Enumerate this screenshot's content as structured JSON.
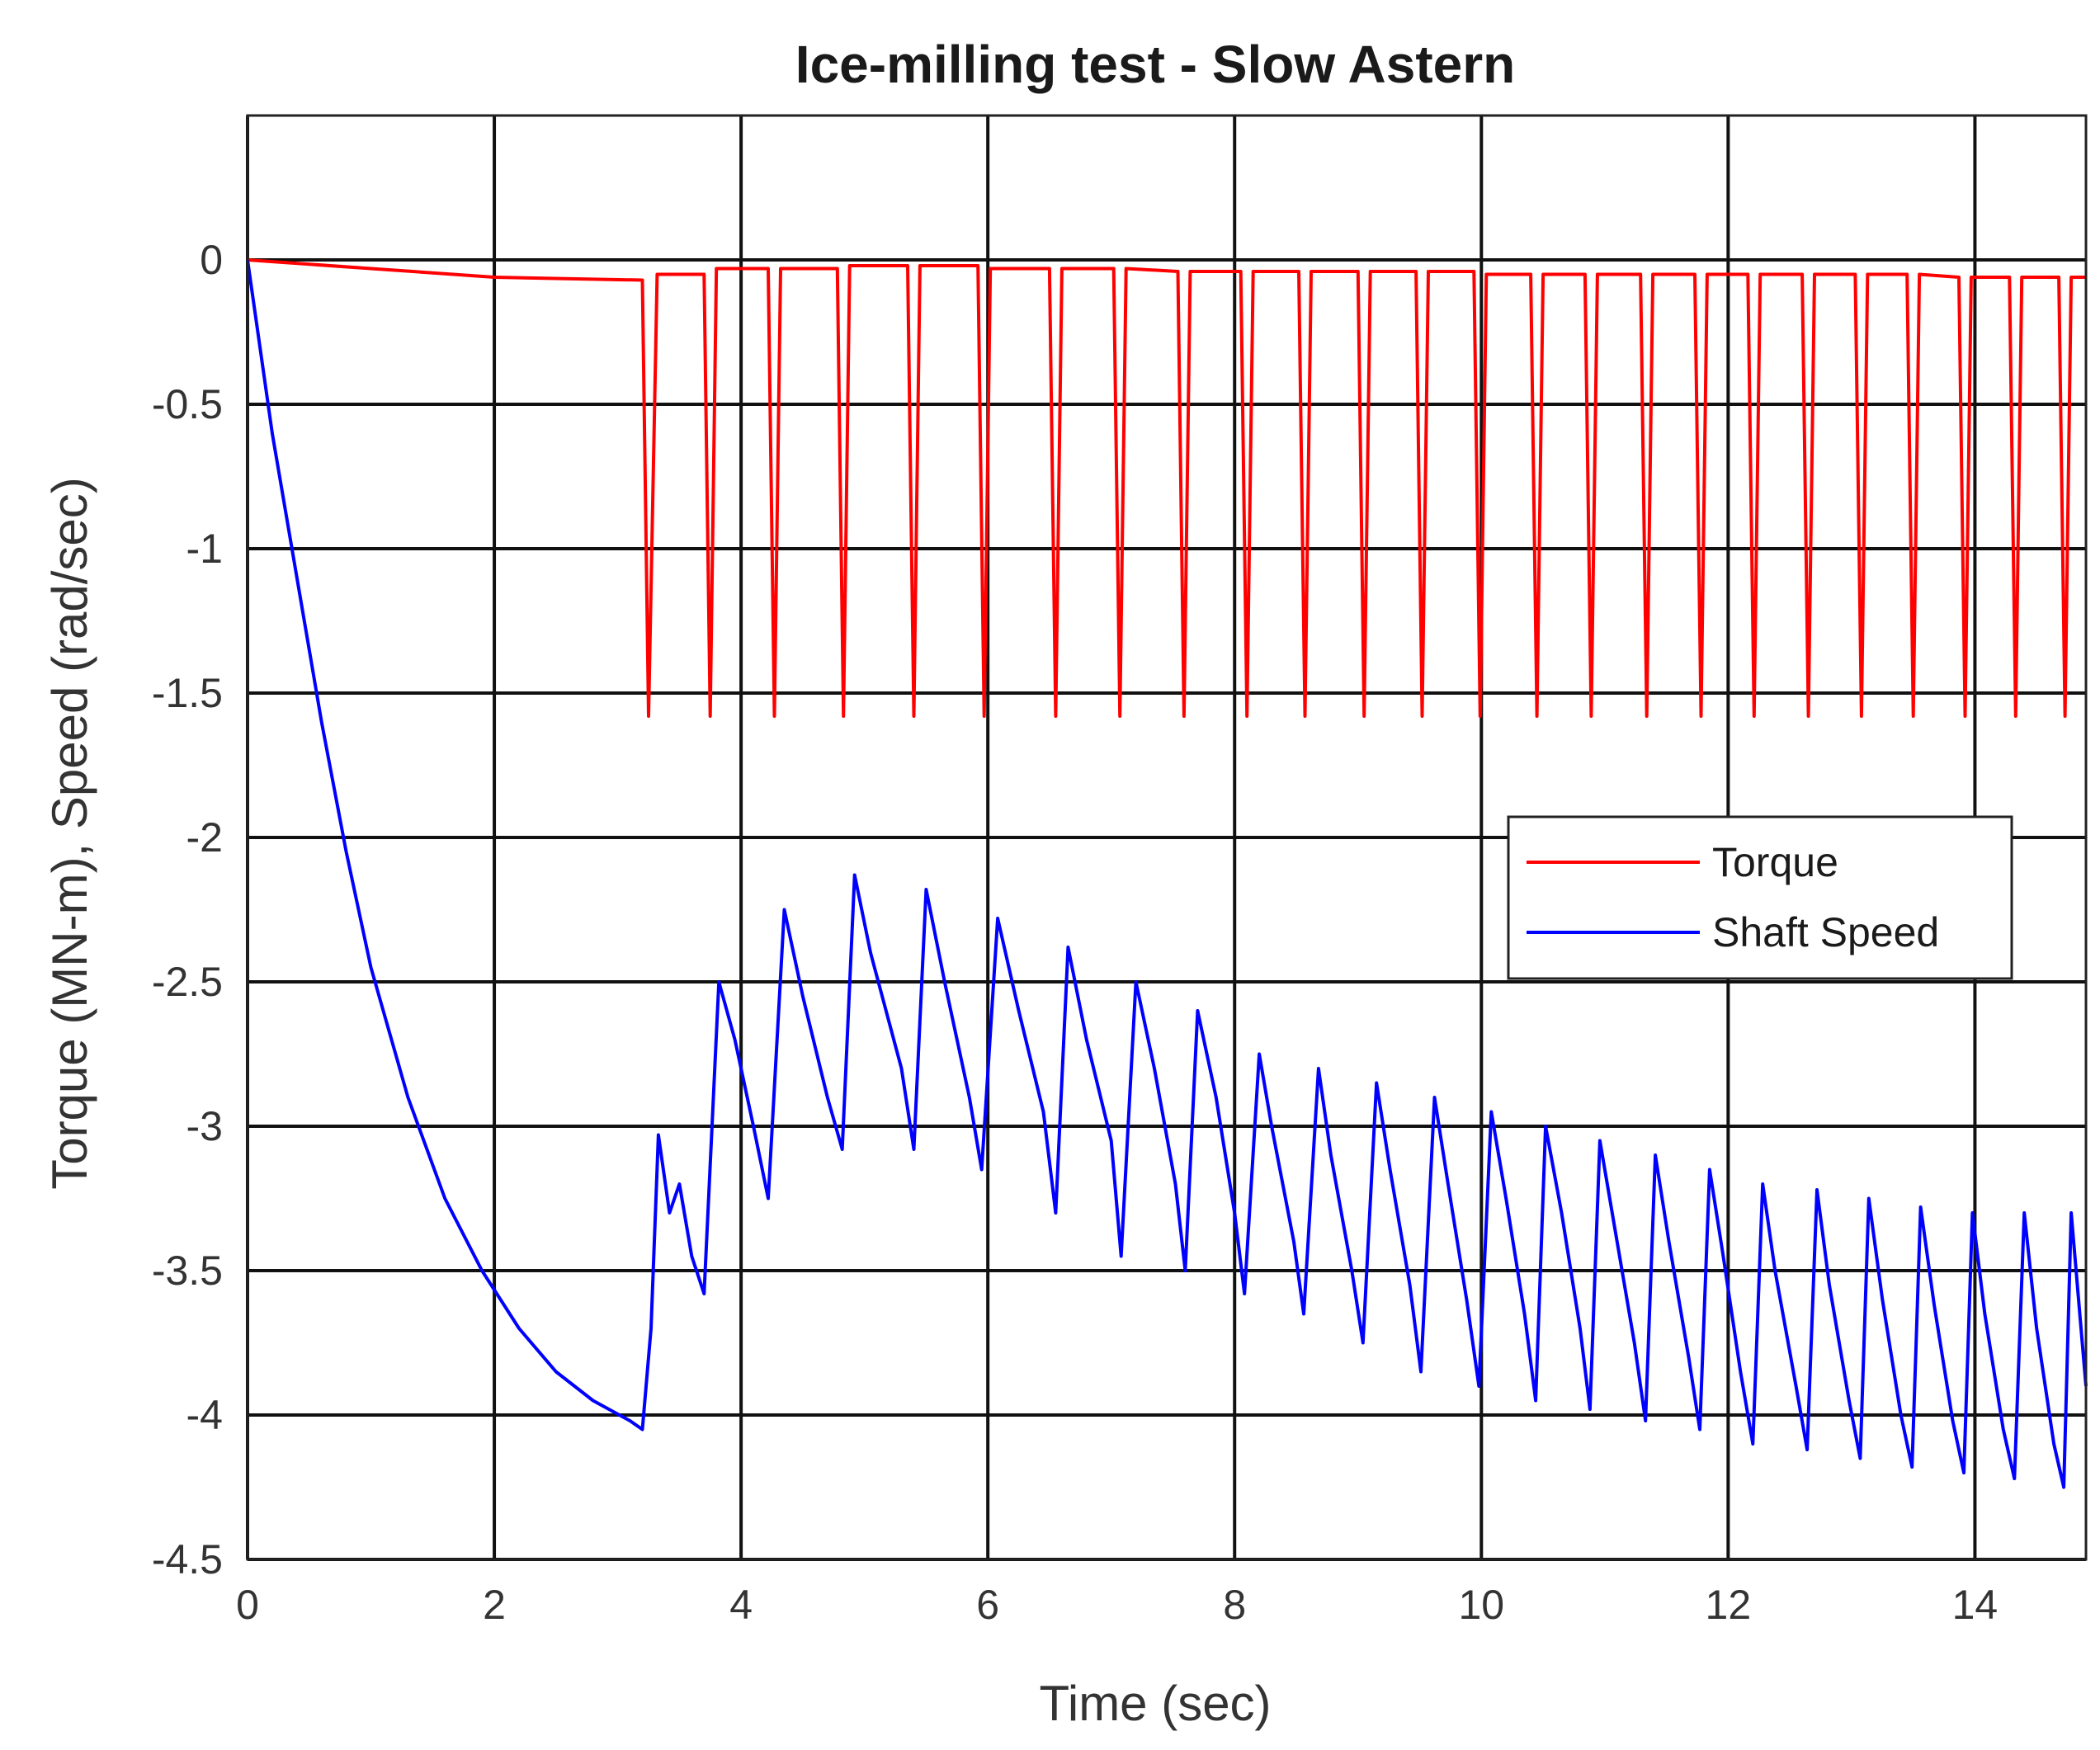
{
  "chart_data": {
    "type": "line",
    "title": "Ice-milling test - Slow Astern",
    "xlabel": "Time (sec)",
    "ylabel": "Torque (MN-m), Speed (rad/sec)",
    "xlim": [
      0,
      14.9
    ],
    "ylim": [
      -4.5,
      0.5
    ],
    "xticks": [
      0,
      2,
      4,
      6,
      8,
      10,
      12,
      14
    ],
    "xtick_labels": [
      "0",
      "2",
      "4",
      "6",
      "8",
      "10",
      "12",
      "14"
    ],
    "yticks": [
      0,
      -0.5,
      -1,
      -1.5,
      -2,
      -2.5,
      -3,
      -3.5,
      -4,
      -4.5
    ],
    "ytick_labels": [
      "0",
      "-0.5",
      "-1",
      "-1.5",
      "-2",
      "-2.5",
      "-3",
      "-3.5",
      "-4",
      "-4.5"
    ],
    "grid": true,
    "legend_position": "middle-right",
    "series": [
      {
        "name": "Torque",
        "color": "#ff0000",
        "points": [
          [
            0,
            0
          ],
          [
            1,
            -0.03
          ],
          [
            2,
            -0.06
          ],
          [
            3.2,
            -0.07
          ],
          [
            3.25,
            -1.58
          ],
          [
            3.32,
            -0.05
          ],
          [
            3.7,
            -0.05
          ],
          [
            3.75,
            -1.58
          ],
          [
            3.8,
            -0.03
          ],
          [
            4.22,
            -0.03
          ],
          [
            4.27,
            -1.58
          ],
          [
            4.32,
            -0.03
          ],
          [
            4.78,
            -0.03
          ],
          [
            4.83,
            -1.58
          ],
          [
            4.88,
            -0.02
          ],
          [
            5.35,
            -0.02
          ],
          [
            5.4,
            -1.58
          ],
          [
            5.45,
            -0.02
          ],
          [
            5.92,
            -0.02
          ],
          [
            5.97,
            -1.58
          ],
          [
            6.02,
            -0.03
          ],
          [
            6.5,
            -0.03
          ],
          [
            6.55,
            -1.58
          ],
          [
            6.6,
            -0.03
          ],
          [
            7.02,
            -0.03
          ],
          [
            7.07,
            -1.58
          ],
          [
            7.12,
            -0.03
          ],
          [
            7.54,
            -0.04
          ],
          [
            7.59,
            -1.58
          ],
          [
            7.64,
            -0.04
          ],
          [
            8.05,
            -0.04
          ],
          [
            8.1,
            -1.58
          ],
          [
            8.15,
            -0.04
          ],
          [
            8.52,
            -0.04
          ],
          [
            8.57,
            -1.58
          ],
          [
            8.62,
            -0.04
          ],
          [
            9,
            -0.04
          ],
          [
            9.05,
            -1.58
          ],
          [
            9.1,
            -0.04
          ],
          [
            9.47,
            -0.04
          ],
          [
            9.52,
            -1.58
          ],
          [
            9.57,
            -0.04
          ],
          [
            9.94,
            -0.04
          ],
          [
            9.99,
            -1.58
          ],
          [
            10.04,
            -0.05
          ],
          [
            10.4,
            -0.05
          ],
          [
            10.45,
            -1.58
          ],
          [
            10.5,
            -0.05
          ],
          [
            10.84,
            -0.05
          ],
          [
            10.89,
            -1.58
          ],
          [
            10.94,
            -0.05
          ],
          [
            11.29,
            -0.05
          ],
          [
            11.34,
            -1.58
          ],
          [
            11.39,
            -0.05
          ],
          [
            11.73,
            -0.05
          ],
          [
            11.78,
            -1.58
          ],
          [
            11.83,
            -0.05
          ],
          [
            12.16,
            -0.05
          ],
          [
            12.21,
            -1.58
          ],
          [
            12.26,
            -0.05
          ],
          [
            12.6,
            -0.05
          ],
          [
            12.65,
            -1.58
          ],
          [
            12.7,
            -0.05
          ],
          [
            13.03,
            -0.05
          ],
          [
            13.08,
            -1.58
          ],
          [
            13.13,
            -0.05
          ],
          [
            13.45,
            -0.05
          ],
          [
            13.5,
            -1.58
          ],
          [
            13.55,
            -0.05
          ],
          [
            13.87,
            -0.06
          ],
          [
            13.92,
            -1.58
          ],
          [
            13.97,
            -0.06
          ],
          [
            14.28,
            -0.06
          ],
          [
            14.33,
            -1.58
          ],
          [
            14.38,
            -0.06
          ],
          [
            14.68,
            -0.06
          ],
          [
            14.73,
            -1.58
          ],
          [
            14.78,
            -0.06
          ],
          [
            14.9,
            -0.06
          ]
        ]
      },
      {
        "name": "Shaft Speed",
        "color": "#0000ff",
        "points": [
          [
            0,
            0
          ],
          [
            0.2,
            -0.6
          ],
          [
            0.4,
            -1.1
          ],
          [
            0.6,
            -1.6
          ],
          [
            0.8,
            -2.05
          ],
          [
            1,
            -2.45
          ],
          [
            1.3,
            -2.9
          ],
          [
            1.6,
            -3.25
          ],
          [
            1.9,
            -3.5
          ],
          [
            2.2,
            -3.7
          ],
          [
            2.5,
            -3.85
          ],
          [
            2.8,
            -3.95
          ],
          [
            3.1,
            -4.02
          ],
          [
            3.2,
            -4.05
          ],
          [
            3.27,
            -3.7
          ],
          [
            3.33,
            -3.03
          ],
          [
            3.42,
            -3.3
          ],
          [
            3.5,
            -3.2
          ],
          [
            3.6,
            -3.45
          ],
          [
            3.7,
            -3.58
          ],
          [
            3.82,
            -2.5
          ],
          [
            3.95,
            -2.7
          ],
          [
            4.1,
            -3.0
          ],
          [
            4.22,
            -3.25
          ],
          [
            4.35,
            -2.25
          ],
          [
            4.5,
            -2.55
          ],
          [
            4.7,
            -2.9
          ],
          [
            4.82,
            -3.08
          ],
          [
            4.92,
            -2.13
          ],
          [
            5.05,
            -2.4
          ],
          [
            5.3,
            -2.8
          ],
          [
            5.4,
            -3.08
          ],
          [
            5.5,
            -2.18
          ],
          [
            5.65,
            -2.5
          ],
          [
            5.85,
            -2.9
          ],
          [
            5.95,
            -3.15
          ],
          [
            6.08,
            -2.28
          ],
          [
            6.25,
            -2.6
          ],
          [
            6.45,
            -2.95
          ],
          [
            6.55,
            -3.3
          ],
          [
            6.65,
            -2.38
          ],
          [
            6.8,
            -2.7
          ],
          [
            7.0,
            -3.05
          ],
          [
            7.08,
            -3.45
          ],
          [
            7.2,
            -2.5
          ],
          [
            7.35,
            -2.8
          ],
          [
            7.52,
            -3.2
          ],
          [
            7.6,
            -3.5
          ],
          [
            7.7,
            -2.6
          ],
          [
            7.85,
            -2.9
          ],
          [
            8.0,
            -3.3
          ],
          [
            8.08,
            -3.58
          ],
          [
            8.2,
            -2.75
          ],
          [
            8.3,
            -3.0
          ],
          [
            8.48,
            -3.4
          ],
          [
            8.56,
            -3.65
          ],
          [
            8.68,
            -2.8
          ],
          [
            8.78,
            -3.1
          ],
          [
            8.95,
            -3.5
          ],
          [
            9.04,
            -3.75
          ],
          [
            9.15,
            -2.85
          ],
          [
            9.26,
            -3.15
          ],
          [
            9.42,
            -3.55
          ],
          [
            9.51,
            -3.85
          ],
          [
            9.62,
            -2.9
          ],
          [
            9.73,
            -3.2
          ],
          [
            9.88,
            -3.6
          ],
          [
            9.98,
            -3.9
          ],
          [
            10.08,
            -2.95
          ],
          [
            10.2,
            -3.25
          ],
          [
            10.35,
            -3.65
          ],
          [
            10.44,
            -3.95
          ],
          [
            10.52,
            -3.0
          ],
          [
            10.65,
            -3.3
          ],
          [
            10.8,
            -3.7
          ],
          [
            10.88,
            -3.98
          ],
          [
            10.96,
            -3.05
          ],
          [
            11.08,
            -3.35
          ],
          [
            11.24,
            -3.75
          ],
          [
            11.33,
            -4.02
          ],
          [
            11.41,
            -3.1
          ],
          [
            11.52,
            -3.4
          ],
          [
            11.68,
            -3.8
          ],
          [
            11.77,
            -4.05
          ],
          [
            11.85,
            -3.15
          ],
          [
            11.96,
            -3.45
          ],
          [
            12.1,
            -3.85
          ],
          [
            12.2,
            -4.1
          ],
          [
            12.28,
            -3.2
          ],
          [
            12.38,
            -3.5
          ],
          [
            12.55,
            -3.9
          ],
          [
            12.64,
            -4.12
          ],
          [
            12.72,
            -3.22
          ],
          [
            12.82,
            -3.55
          ],
          [
            12.98,
            -3.95
          ],
          [
            13.07,
            -4.15
          ],
          [
            13.14,
            -3.25
          ],
          [
            13.25,
            -3.6
          ],
          [
            13.4,
            -4.0
          ],
          [
            13.49,
            -4.18
          ],
          [
            13.56,
            -3.28
          ],
          [
            13.67,
            -3.62
          ],
          [
            13.82,
            -4.02
          ],
          [
            13.91,
            -4.2
          ],
          [
            13.98,
            -3.3
          ],
          [
            14.08,
            -3.65
          ],
          [
            14.23,
            -4.05
          ],
          [
            14.32,
            -4.22
          ],
          [
            14.4,
            -3.3
          ],
          [
            14.5,
            -3.7
          ],
          [
            14.64,
            -4.1
          ],
          [
            14.72,
            -4.25
          ],
          [
            14.78,
            -3.3
          ],
          [
            14.86,
            -3.7
          ],
          [
            14.9,
            -3.9
          ]
        ]
      }
    ]
  }
}
